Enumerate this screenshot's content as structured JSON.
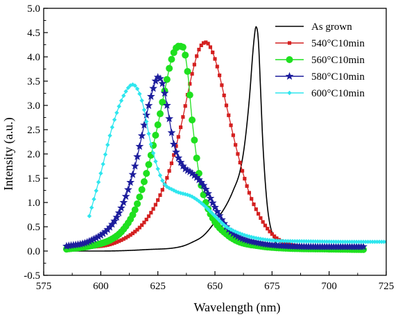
{
  "chart_data": {
    "type": "line",
    "title": "",
    "xlabel": "Wavelength (nm)",
    "ylabel": "Intensity (a.u.)",
    "xlim": [
      575,
      725
    ],
    "ylim": [
      -0.5,
      5.0
    ],
    "x_ticks": [
      "575",
      "600",
      "625",
      "650",
      "675",
      "700",
      "725"
    ],
    "y_ticks": [
      "-0.5",
      "0.0",
      "0.5",
      "1.0",
      "1.5",
      "2.0",
      "2.5",
      "3.0",
      "3.5",
      "4.0",
      "4.5",
      "5.0"
    ],
    "grid": false,
    "legend_position": "top-right",
    "series": [
      {
        "name": "As grown",
        "color": "#000000",
        "marker": "none",
        "x": [
          585,
          600,
          620,
          635,
          640,
          645,
          650,
          655,
          658,
          661,
          663,
          665,
          667,
          668,
          669,
          670,
          671,
          673,
          676,
          680,
          690,
          715
        ],
        "y": [
          0.0,
          0.0,
          0.03,
          0.09,
          0.18,
          0.32,
          0.6,
          0.95,
          1.25,
          1.65,
          2.2,
          3.1,
          4.3,
          4.62,
          4.35,
          3.3,
          2.2,
          0.9,
          0.25,
          0.06,
          0.02,
          0.02
        ]
      },
      {
        "name": "540°C10min",
        "color": "#d42020",
        "marker": "square",
        "x": [
          585,
          595,
          605,
          615,
          620,
          625,
          630,
          635,
          640,
          643,
          646,
          648,
          651,
          655,
          660,
          665,
          670,
          675,
          680,
          690,
          700,
          715
        ],
        "y": [
          0.05,
          0.08,
          0.15,
          0.4,
          0.65,
          1.05,
          1.65,
          2.55,
          3.65,
          4.15,
          4.3,
          4.2,
          3.8,
          3.0,
          2.0,
          1.2,
          0.68,
          0.35,
          0.18,
          0.08,
          0.05,
          0.04
        ]
      },
      {
        "name": "560°C10min",
        "color": "#1fe01f",
        "marker": "circle",
        "x": [
          585,
          595,
          605,
          610,
          615,
          620,
          625,
          628,
          631,
          634,
          636,
          638,
          640,
          643,
          646,
          650,
          655,
          660,
          670,
          680,
          700,
          715
        ],
        "y": [
          0.04,
          0.1,
          0.25,
          0.45,
          0.85,
          1.6,
          2.6,
          3.3,
          3.95,
          4.22,
          4.2,
          3.7,
          2.7,
          1.6,
          1.0,
          0.6,
          0.35,
          0.2,
          0.1,
          0.06,
          0.04,
          0.03
        ]
      },
      {
        "name": "580°C10min",
        "color": "#1c1c9c",
        "marker": "star",
        "x": [
          585,
          595,
          605,
          610,
          615,
          620,
          623,
          625,
          627,
          629,
          632,
          636,
          640,
          645,
          650,
          655,
          660,
          670,
          680,
          700,
          715
        ],
        "y": [
          0.1,
          0.2,
          0.55,
          1.0,
          1.75,
          2.8,
          3.35,
          3.58,
          3.45,
          3.0,
          2.2,
          1.75,
          1.6,
          1.35,
          0.9,
          0.5,
          0.3,
          0.16,
          0.11,
          0.09,
          0.09
        ]
      },
      {
        "name": "600°C10min",
        "color": "#2ee6ee",
        "marker": "diamond",
        "x": [
          595,
          600,
          605,
          610,
          614,
          618,
          622,
          627,
          632,
          640,
          645,
          650,
          655,
          660,
          665,
          675,
          690,
          710,
          725
        ],
        "y": [
          0.72,
          1.6,
          2.55,
          3.2,
          3.43,
          3.1,
          2.2,
          1.45,
          1.25,
          1.12,
          0.95,
          0.72,
          0.5,
          0.38,
          0.3,
          0.22,
          0.2,
          0.19,
          0.19
        ]
      }
    ]
  }
}
